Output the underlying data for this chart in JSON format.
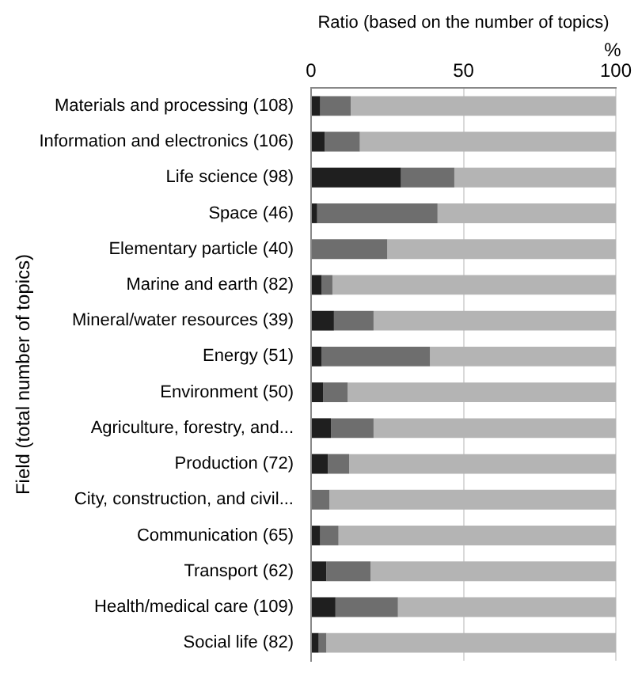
{
  "chart_data": {
    "type": "bar",
    "orientation": "horizontal",
    "stacked": true,
    "xlabel": "Ratio (based on the number of topics)",
    "ylabel": "Field (total number of topics)",
    "annotations": [
      "%"
    ],
    "categories": [
      "Materials and processing (108)",
      "Information and electronics (106)",
      "Life science (98)",
      "Space (46)",
      "Elementary particle (40)",
      "Marine and earth (82)",
      "Mineral/water resources (39)",
      "Energy (51)",
      "Environment (50)",
      "Agriculture, forestry, and...",
      "Production (72)",
      "City, construction, and civil...",
      "Communication (65)",
      "Transport (62)",
      "Health/medical care (109)",
      "Social life (82)"
    ],
    "series": [
      {
        "color": "#1f1f1f",
        "values": [
          3,
          4.5,
          29.5,
          2,
          0,
          3.5,
          7.5,
          3.5,
          4,
          6.5,
          5.5,
          0,
          3,
          5,
          8,
          2.5
        ]
      },
      {
        "color": "#6e6e6e",
        "values": [
          10,
          11.5,
          17.5,
          39.5,
          25,
          3.5,
          13,
          35.5,
          8,
          14,
          7,
          6,
          6,
          14.5,
          20.5,
          2.5
        ]
      },
      {
        "color": "#b4b4b4",
        "values": [
          87,
          84,
          53,
          58.5,
          75,
          93,
          79.5,
          61,
          88,
          79.5,
          87.5,
          94,
          91,
          80.5,
          71.5,
          95
        ]
      }
    ],
    "xlim": [
      0,
      100
    ],
    "xticks": [
      0,
      50,
      100
    ],
    "grid": "x",
    "legend": false
  }
}
